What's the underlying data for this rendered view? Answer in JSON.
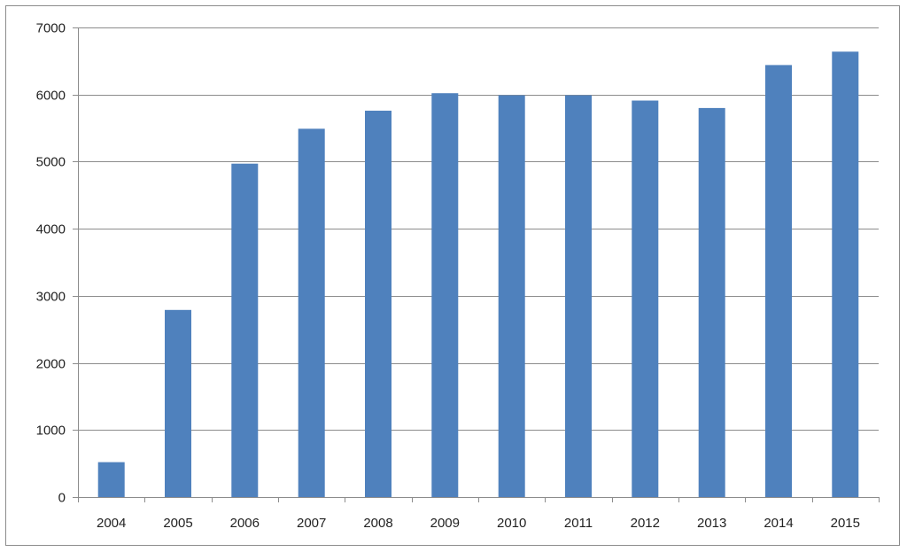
{
  "chart_data": {
    "type": "bar",
    "title": "",
    "xlabel": "",
    "ylabel": "",
    "categories": [
      "2004",
      "2005",
      "2006",
      "2007",
      "2008",
      "2009",
      "2010",
      "2011",
      "2012",
      "2013",
      "2014",
      "2015"
    ],
    "values": [
      520,
      2790,
      4970,
      5490,
      5760,
      6020,
      5990,
      5990,
      5910,
      5800,
      6440,
      6640
    ],
    "ylim": [
      0,
      7000
    ],
    "yticks": [
      0,
      1000,
      2000,
      3000,
      4000,
      5000,
      6000,
      7000
    ],
    "grid": true,
    "legend": "none",
    "colors": {
      "bar": "#4f81bd",
      "grid": "#8c8c8c",
      "axis": "#8c8c8c"
    }
  }
}
